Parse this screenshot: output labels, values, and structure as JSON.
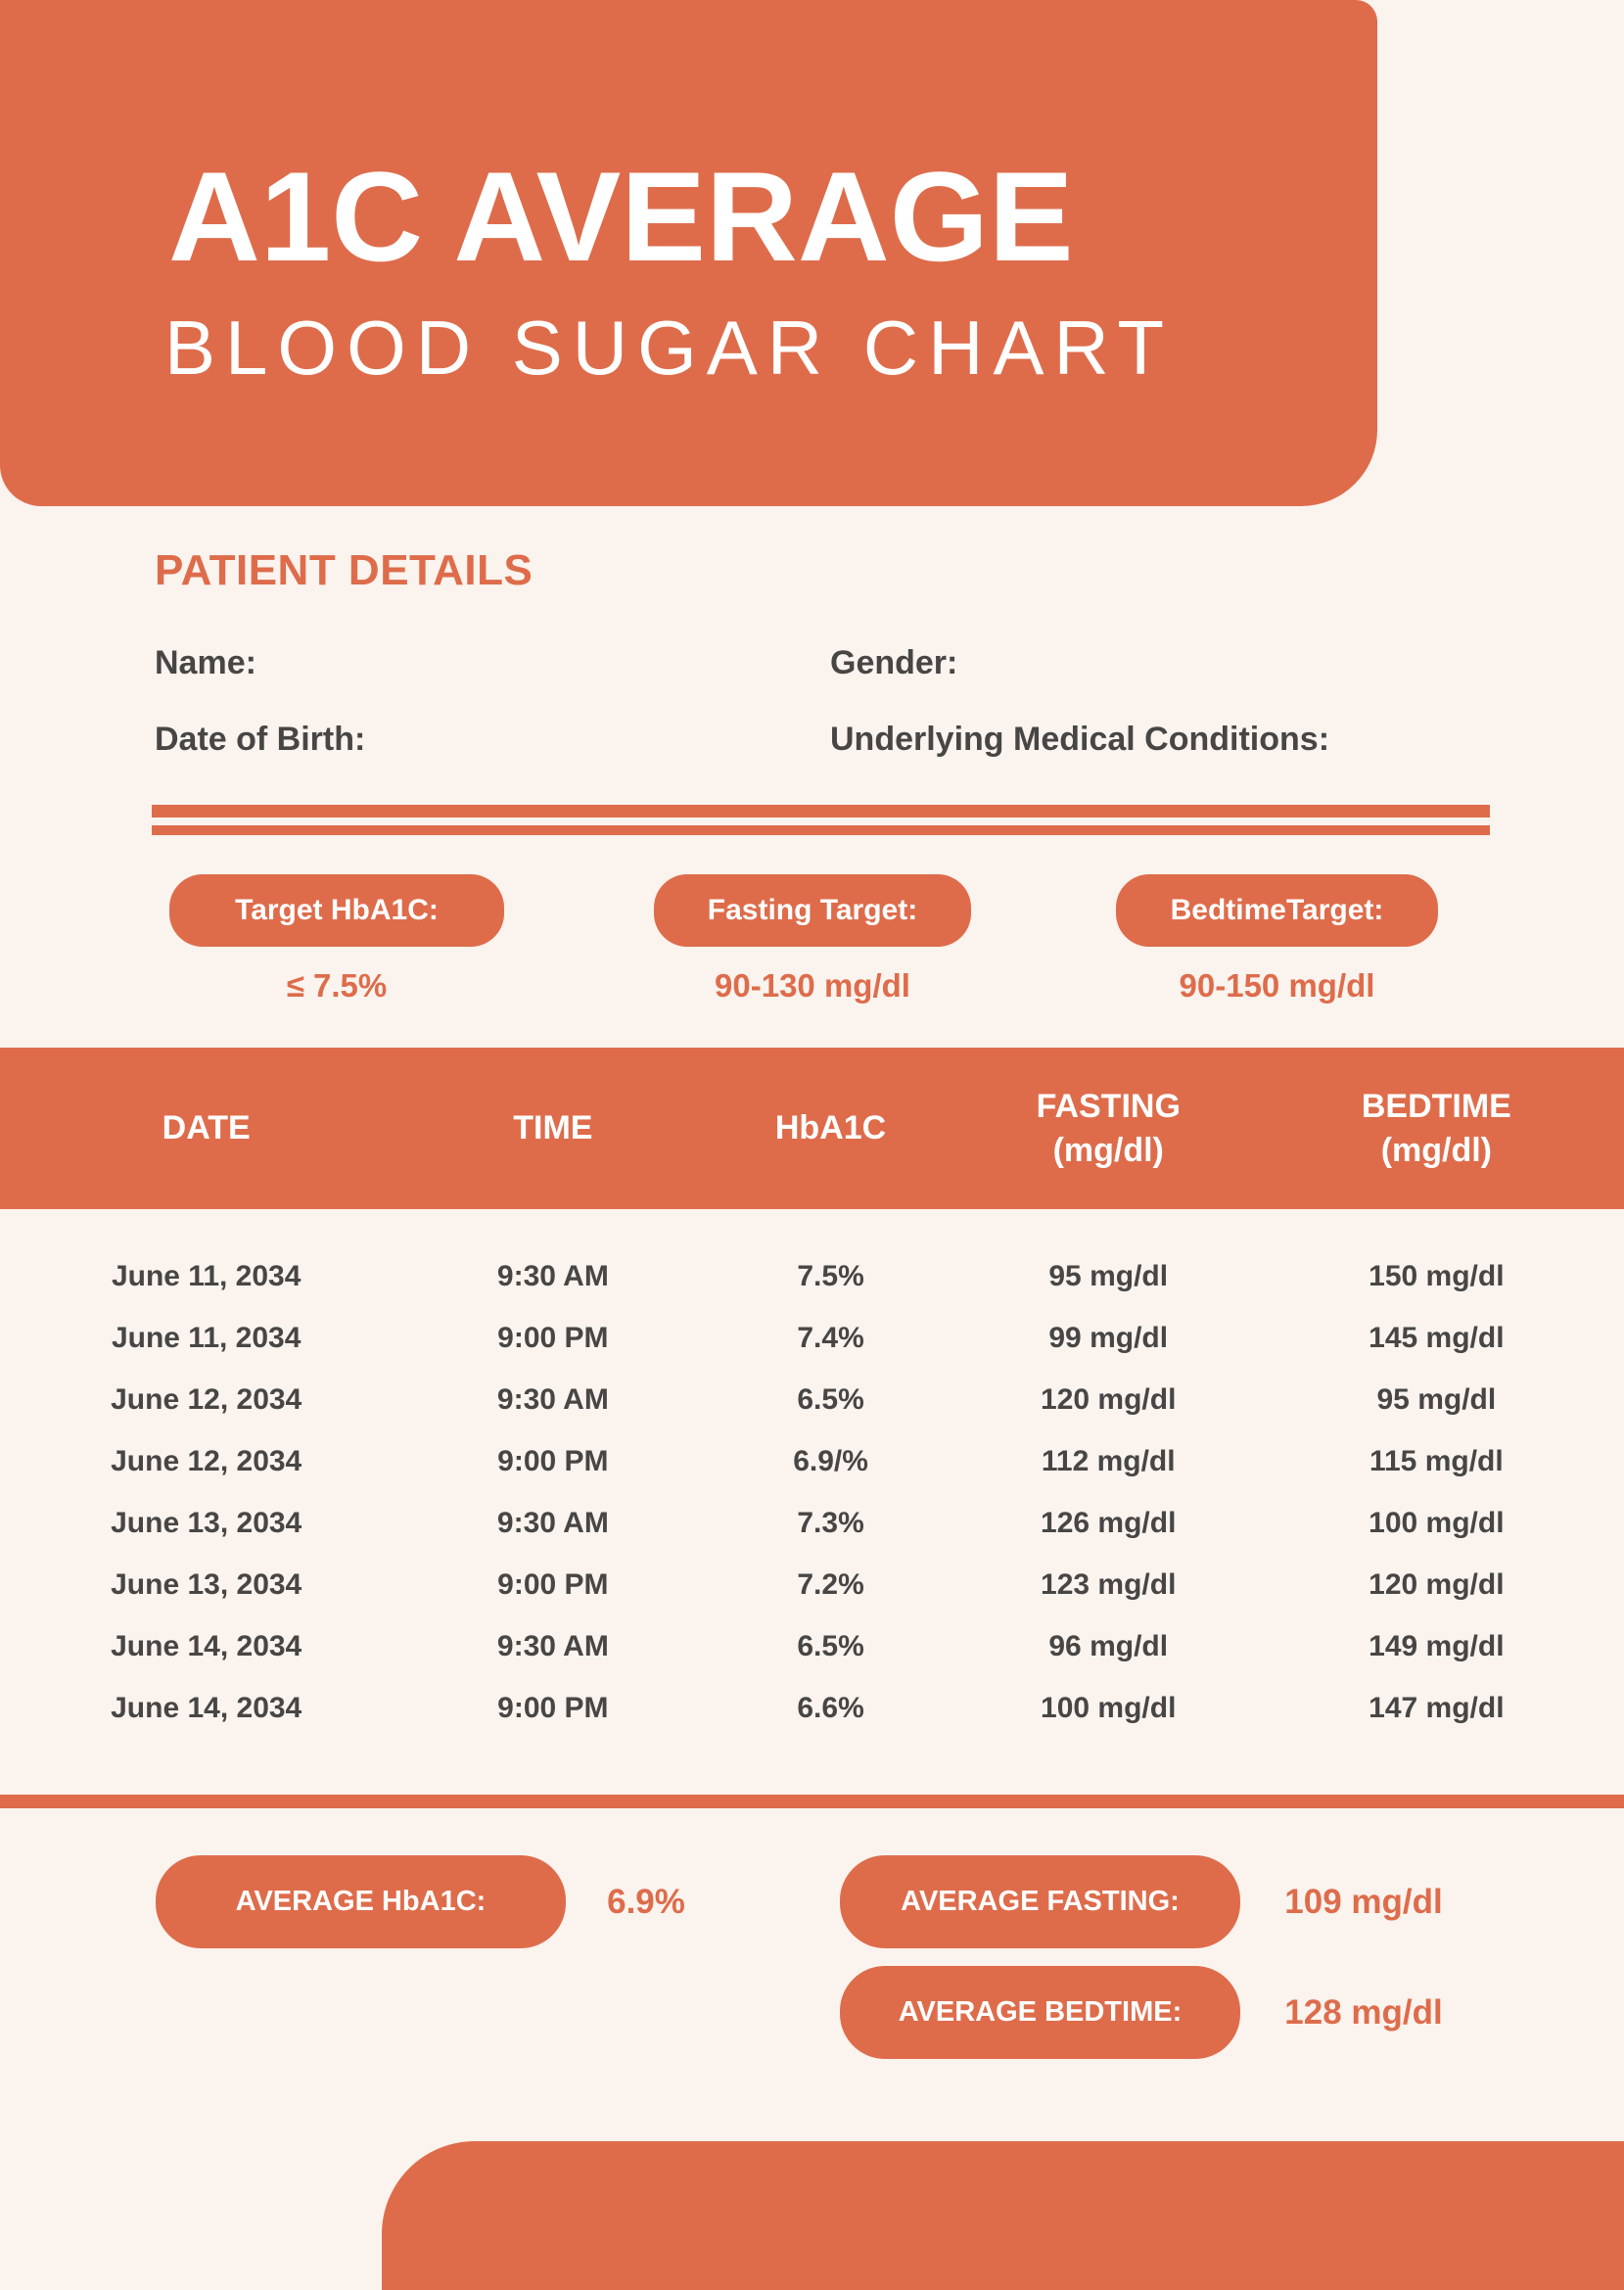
{
  "colors": {
    "accent": "#de6c4b",
    "background": "#faf3ee",
    "ink": "#474645",
    "white": "#ffffff"
  },
  "header": {
    "title": "A1C AVERAGE",
    "subtitle": "BLOOD SUGAR CHART"
  },
  "patient_details": {
    "heading": "PATIENT DETAILS",
    "name_label": "Name:",
    "gender_label": "Gender:",
    "dob_label": "Date of Birth:",
    "conditions_label": "Underlying Medical Conditions:"
  },
  "targets": [
    {
      "label": "Target HbA1C:",
      "value": "≤ 7.5%"
    },
    {
      "label": "Fasting Target:",
      "value": "90-130 mg/dl"
    },
    {
      "label": "BedtimeTarget:",
      "value": "90-150 mg/dl"
    }
  ],
  "chart_data": {
    "type": "table",
    "columns": [
      [
        "DATE"
      ],
      [
        "TIME"
      ],
      [
        "HbA1C"
      ],
      [
        "FASTING",
        "(mg/dl)"
      ],
      [
        "BEDTIME",
        "(mg/dl)"
      ]
    ],
    "rows": [
      [
        "June 11, 2034",
        "9:30 AM",
        "7.5%",
        "95 mg/dl",
        "150 mg/dl"
      ],
      [
        "June 11, 2034",
        "9:00 PM",
        "7.4%",
        "99 mg/dl",
        "145 mg/dl"
      ],
      [
        "June 12, 2034",
        "9:30 AM",
        "6.5%",
        "120 mg/dl",
        "95 mg/dl"
      ],
      [
        "June 12, 2034",
        "9:00 PM",
        "6.9/%",
        "112 mg/dl",
        "115 mg/dl"
      ],
      [
        "June 13, 2034",
        "9:30 AM",
        "7.3%",
        "126 mg/dl",
        "100 mg/dl"
      ],
      [
        "June 13, 2034",
        "9:00 PM",
        "7.2%",
        "123 mg/dl",
        "120 mg/dl"
      ],
      [
        "June 14, 2034",
        "9:30 AM",
        "6.5%",
        "96 mg/dl",
        "149 mg/dl"
      ],
      [
        "June 14, 2034",
        "9:00 PM",
        "6.6%",
        "100 mg/dl",
        "147 mg/dl"
      ]
    ]
  },
  "averages": {
    "hba1c": {
      "label": "AVERAGE HbA1C:",
      "value": "6.9%"
    },
    "fasting": {
      "label": "AVERAGE FASTING:",
      "value": "109 mg/dl"
    },
    "bedtime": {
      "label": "AVERAGE BEDTIME:",
      "value": "128 mg/dl"
    }
  }
}
